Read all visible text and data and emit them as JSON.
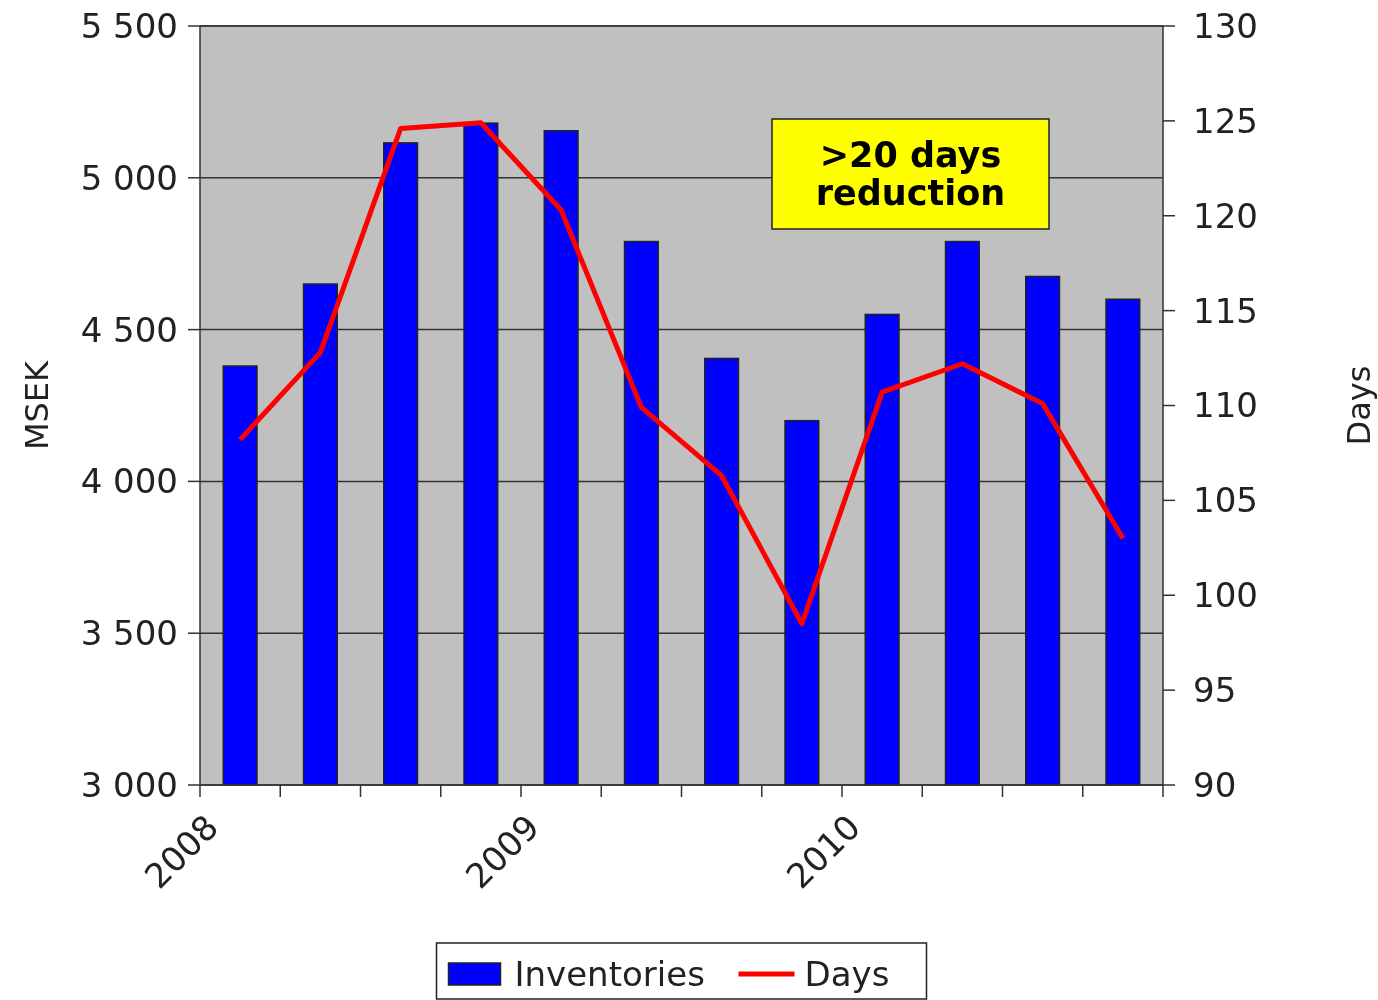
{
  "chart_data": {
    "type": "bar",
    "x": [
      2008.125,
      2008.375,
      2008.625,
      2008.875,
      2009.125,
      2009.375,
      2009.625,
      2009.875,
      2010.125,
      2010.375,
      2010.625,
      2010.875
    ],
    "xlim": [
      2008,
      2011
    ],
    "xticks": [
      2008,
      {
        "value": 2008.25,
        "label": null
      },
      {
        "value": 2008.5,
        "label": null
      },
      {
        "value": 2008.75,
        "label": null
      },
      2009,
      {
        "value": 2009.25,
        "label": null
      },
      {
        "value": 2009.5,
        "label": null
      },
      {
        "value": 2009.75,
        "label": null
      },
      2010,
      {
        "value": 2010.25,
        "label": null
      },
      {
        "value": 2010.5,
        "label": null
      },
      {
        "value": 2010.75,
        "label": null
      },
      {
        "value": 2011,
        "label": null
      }
    ],
    "series": [
      {
        "name": "Inventories",
        "color": "#0000ff",
        "values": [
          4380,
          4650,
          5115,
          5180,
          5155,
          4790,
          4405,
          4200,
          4550,
          4790,
          4675,
          4600
        ]
      },
      {
        "name": "Days",
        "type": "line",
        "axis": "y2",
        "color": "#ff0000",
        "values": [
          108.2,
          112.8,
          124.6,
          124.9,
          120.3,
          109.9,
          106.3,
          98.5,
          110.7,
          112.2,
          110.1,
          103.0
        ]
      }
    ],
    "ylabel": "MSEK",
    "y2label": "Days",
    "ylim": [
      3000,
      5500
    ],
    "yticks": [
      {
        "value": 3000,
        "label": "3 000"
      },
      {
        "value": 3500,
        "label": "3 500"
      },
      {
        "value": 4000,
        "label": "4 000"
      },
      {
        "value": 4500,
        "label": "4 500"
      },
      {
        "value": 5000,
        "label": "5 000"
      },
      {
        "value": 5500,
        "label": "5 500"
      }
    ],
    "y2lim": [
      90,
      130
    ],
    "y2ticks": [
      90,
      95,
      100,
      105,
      110,
      115,
      120,
      125,
      130
    ],
    "annotations": [
      ">20 days\nreduction"
    ],
    "grid": "y",
    "legend": "bottom"
  }
}
